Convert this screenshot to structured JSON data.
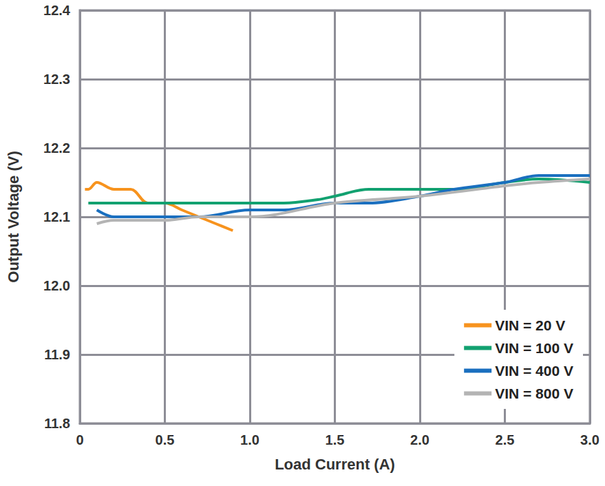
{
  "chart_data": {
    "type": "line",
    "x_label": "Load Current (A)",
    "y_label": "Output Voltage (V)",
    "xlim": [
      0,
      3
    ],
    "xticks": [
      0,
      0.5,
      {
        "value": 1,
        "label": "1.0"
      },
      1.5,
      {
        "value": 2,
        "label": "2.0"
      },
      2.5,
      {
        "value": 3,
        "label": "3.0"
      }
    ],
    "ylim": [
      11.8,
      12.4
    ],
    "yticks": [
      11.8,
      11.9,
      {
        "value": 12,
        "label": "12.0"
      },
      12.1,
      12.2,
      12.3,
      12.4
    ],
    "grid": true,
    "legend": "lower right",
    "line_style": "solid",
    "series": [
      {
        "name": "VIN = 20 V",
        "color": "#f7931e",
        "x": [
          0.03,
          0.05,
          0.1,
          0.2,
          0.3,
          0.4,
          0.5,
          0.6,
          0.7,
          0.8,
          0.9
        ],
        "values": [
          12.14,
          12.14,
          12.15,
          12.14,
          12.14,
          12.12,
          12.12,
          12.11,
          12.1,
          12.09,
          12.08
        ]
      },
      {
        "name": "VIN = 100 V",
        "color": "#12a170",
        "x": [
          0.05,
          0.5,
          1.0,
          1.2,
          1.4,
          1.5,
          1.7,
          2.0,
          2.2,
          2.5,
          2.7,
          3.0
        ],
        "values": [
          12.12,
          12.12,
          12.12,
          12.12,
          12.125,
          12.13,
          12.14,
          12.14,
          12.14,
          12.15,
          12.155,
          12.15
        ]
      },
      {
        "name": "VIN = 400 V",
        "color": "#1a6fbf",
        "x": [
          0.1,
          0.2,
          0.5,
          0.7,
          1.0,
          1.2,
          1.5,
          1.7,
          2.0,
          2.2,
          2.5,
          2.7,
          3.0
        ],
        "values": [
          12.11,
          12.1,
          12.1,
          12.1,
          12.11,
          12.11,
          12.12,
          12.12,
          12.13,
          12.14,
          12.15,
          12.16,
          12.16
        ]
      },
      {
        "name": "VIN = 800 V",
        "color": "#b4b4b4",
        "x": [
          0.1,
          0.2,
          0.5,
          0.7,
          1.0,
          1.5,
          2.0,
          2.5,
          2.7,
          3.0
        ],
        "values": [
          12.09,
          12.095,
          12.095,
          12.1,
          12.1,
          12.12,
          12.13,
          12.145,
          12.15,
          12.155
        ]
      }
    ]
  }
}
